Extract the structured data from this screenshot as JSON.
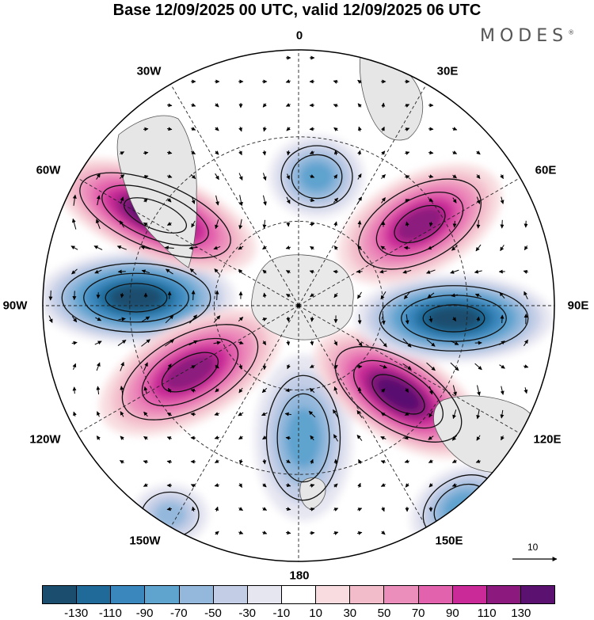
{
  "title": "Base 12/09/2025 00 UTC, valid 12/09/2025 06 UTC",
  "brand": "MODES",
  "brand_mark": "®",
  "longitude_labels": {
    "lon_0": "0",
    "lon_30e": "30E",
    "lon_60e": "60E",
    "lon_90e": "90E",
    "lon_120e": "120E",
    "lon_150e": "150E",
    "lon_180": "180",
    "lon_150w": "150W",
    "lon_120w": "120W",
    "lon_90w": "90W",
    "lon_60w": "60W",
    "lon_30w": "30W"
  },
  "reference_vector_label": "10",
  "colorbar": {
    "colors": [
      "#1b4e6e",
      "#1f6a99",
      "#3a87bd",
      "#5fa3cf",
      "#93b8dc",
      "#c3cde6",
      "#e6e6f1",
      "#ffffff",
      "#f8dcdf",
      "#f3bccb",
      "#ec8ebb",
      "#e362ad",
      "#c92a97",
      "#8c1a7e",
      "#5a1170"
    ],
    "tick_labels": [
      "-130",
      "-110",
      "-90",
      "-70",
      "-50",
      "-30",
      "-10",
      "10",
      "30",
      "50",
      "70",
      "90",
      "110",
      "130"
    ]
  },
  "chart_data": {
    "type": "heatmap",
    "projection": "south polar stereographic",
    "title": "Base 12/09/2025 00 UTC, valid 12/09/2025 06 UTC",
    "levels": [
      -130,
      -110,
      -90,
      -70,
      -50,
      -30,
      -10,
      10,
      30,
      50,
      70,
      90,
      110,
      130
    ],
    "anomaly_centers": [
      {
        "lon": "90W",
        "sign": "negative",
        "peak": -130
      },
      {
        "lon": "60W",
        "sign": "positive",
        "peak": 130
      },
      {
        "lon": "120W",
        "sign": "positive",
        "peak": 110
      },
      {
        "lon": "180",
        "sign": "negative",
        "peak": -70
      },
      {
        "lon": "120E",
        "sign": "positive",
        "peak": 130
      },
      {
        "lon": "90E",
        "sign": "negative",
        "peak": -130
      },
      {
        "lon": "60E",
        "sign": "positive",
        "peak": 110
      },
      {
        "lon": "0",
        "sign": "negative",
        "peak": -70
      },
      {
        "lon": "150E",
        "sign": "negative",
        "peak": -70
      },
      {
        "lon": "150W",
        "sign": "negative",
        "peak": -50
      }
    ],
    "reference_vector": 10
  }
}
